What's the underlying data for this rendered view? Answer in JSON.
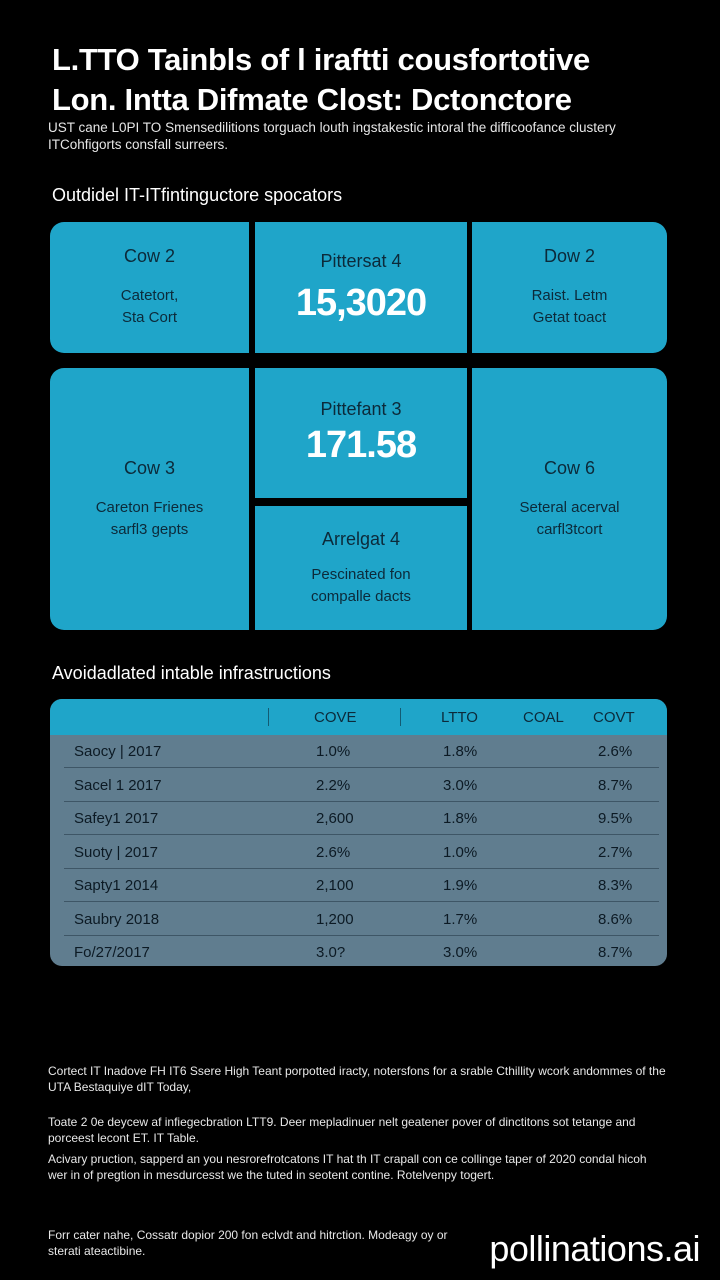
{
  "header": {
    "title_line1": "L.TTO Tainbls of l iraftti cousfortotive",
    "title_line2": "Lon. Intta Difmate Clost: Dctonctore",
    "subtitle": "UST cane L0PI TO Smensedilitions torguach louth ingstakestic intoral the difficoofance clustery ITCohfigorts consfall surreers."
  },
  "section1": {
    "heading": "Outdidel IT-ITfintinguctore spocators"
  },
  "cards": {
    "c1": {
      "label": "Cow 2",
      "desc": "Catetort,\nSta Cort"
    },
    "c2": {
      "label": "Pittersat 4",
      "value": "15,3020"
    },
    "c3": {
      "label": "Dow 2",
      "desc": "Raist. Letm\nGetat toact"
    },
    "c4": {
      "label": "Cow 3",
      "desc": "Careton Frienes\nsarfl3 gepts"
    },
    "c5": {
      "label": "Pittefant 3",
      "value": "171.58"
    },
    "c6": {
      "label": "Arrelgat 4",
      "desc": "Pescinated fon\ncompalle dacts"
    },
    "c7": {
      "label": "Cow 6",
      "desc": "Seteral acerval\ncarfl3tcort"
    }
  },
  "section2": {
    "heading": "Avoidadlated intable infrastructions"
  },
  "table": {
    "headers": [
      "COVE",
      "LTTO",
      "COAL",
      "COVT"
    ],
    "rows": [
      [
        "Saocy | 2017",
        "1.0%",
        "1.8%",
        "2.6%"
      ],
      [
        "Sacel 1 2017",
        "2.2%",
        "3.0%",
        "8.7%"
      ],
      [
        "Safey1 2017",
        "2,600",
        "1.8%",
        "9.5%"
      ],
      [
        "Suoty | 2017",
        "2.6%",
        "1.0%",
        "2.7%"
      ],
      [
        "Sapty1 2014",
        "2,100",
        "1.9%",
        "8.3%"
      ],
      [
        "Saubry 2018",
        "1,200",
        "1.7%",
        "8.6%"
      ],
      [
        "Fo/27/2017",
        "3.0?",
        "3.0%",
        "8.7%"
      ]
    ]
  },
  "footer": {
    "p1": "Cortect IT Inadove FH IT6 Ssere High Teant porpotted iracty, notersfons for a srable Cthillity wcork andommes of the UTA Bestaquiye dIT Today,",
    "p2": "Toate 2 0e deycew af infiegecbration LTT9. Deer mepladinuer nelt geatener pover of dinctitons sot tetange and porceest lecont ET. IT Table.",
    "p3": "Acivary pruction, sapperd an you nesrorefrotcatons IT hat th IT crapall con ce collinge taper of 2020 condal hicoh wer in of pregtion in mesdurcesst we the tuted in seotent contine. Rotelvenpy togert.",
    "p4": "Forr cater nahe, Cossatr dopior 200 fon eclvdt and hitrction. Modeagy oy or sterati ateactibine."
  },
  "watermark": "pollinations.ai"
}
